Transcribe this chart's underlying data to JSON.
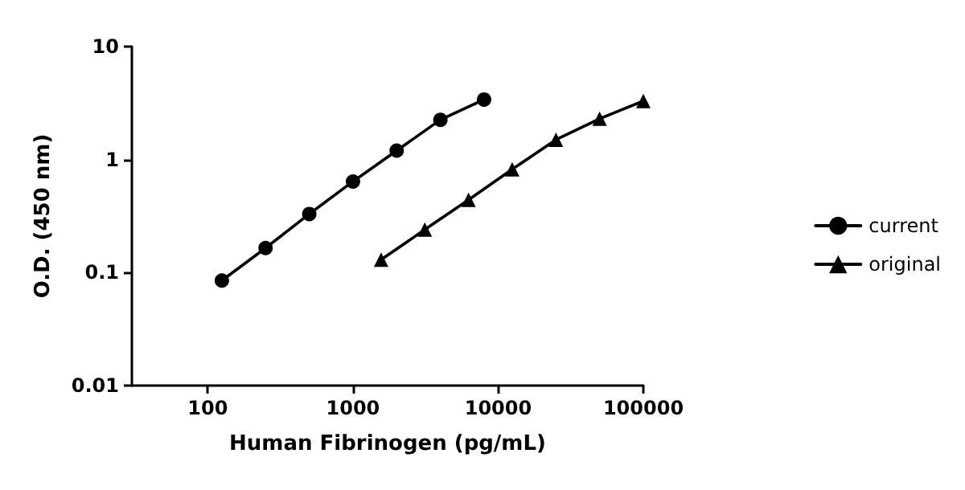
{
  "chart_data": {
    "type": "line",
    "xlabel": "Human Fibrinogen (pg/mL)",
    "ylabel": "O.D. (450 nm)",
    "log": "xy",
    "xlim": [
      30,
      100000
    ],
    "ylim": [
      0.01,
      10
    ],
    "xticks": [
      100,
      1000,
      10000,
      100000
    ],
    "yticks": [
      0.01,
      0.1,
      1,
      10
    ],
    "legend": "right",
    "line_style": "solid",
    "series": [
      {
        "name": "current",
        "color": "#000000",
        "marker": "circle",
        "x": [
          125,
          250,
          500,
          1000,
          2000,
          4000,
          8000
        ],
        "values": [
          0.085,
          0.165,
          0.33,
          0.64,
          1.2,
          2.25,
          3.4
        ]
      },
      {
        "name": "original",
        "color": "#000000",
        "marker": "triangle",
        "x": [
          1562.5,
          3125,
          6250,
          12500,
          25000,
          50000,
          100000
        ],
        "values": [
          0.13,
          0.24,
          0.44,
          0.82,
          1.5,
          2.3,
          3.3
        ]
      }
    ]
  }
}
